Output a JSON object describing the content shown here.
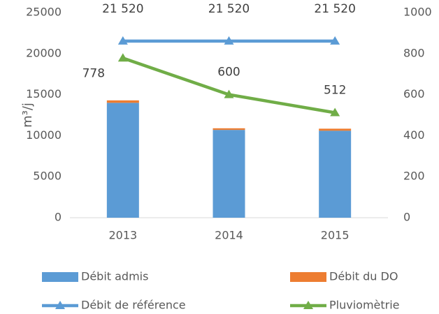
{
  "chart_data": {
    "type": "combo",
    "y_label": "m³/j",
    "categories": [
      "2013",
      "2014",
      "2015"
    ],
    "series": [
      {
        "name": "Débit admis",
        "type": "bar",
        "color": "#5b9bd5",
        "values": [
          14000,
          10700,
          10600
        ]
      },
      {
        "name": "Débit du DO",
        "type": "bar",
        "color": "#ed7d31",
        "values": [
          300,
          200,
          250
        ]
      },
      {
        "name": "Débit de référence",
        "type": "line",
        "color": "#5b9bd5",
        "values": [
          21520,
          21520,
          21520
        ],
        "value_labels": [
          "21 520",
          "21 520",
          "21 520"
        ]
      },
      {
        "name": "Pluviomètrie",
        "type": "line",
        "axis": "y2",
        "color": "#70ad47",
        "values": [
          778,
          600,
          512
        ]
      }
    ],
    "ylim": [
      0,
      25000
    ],
    "yticks": [
      0,
      5000,
      10000,
      15000,
      20000,
      25000
    ],
    "y2lim": [
      0,
      1000
    ],
    "y2ticks": [
      0,
      200,
      400,
      600,
      800,
      1000
    ],
    "grid": false
  }
}
